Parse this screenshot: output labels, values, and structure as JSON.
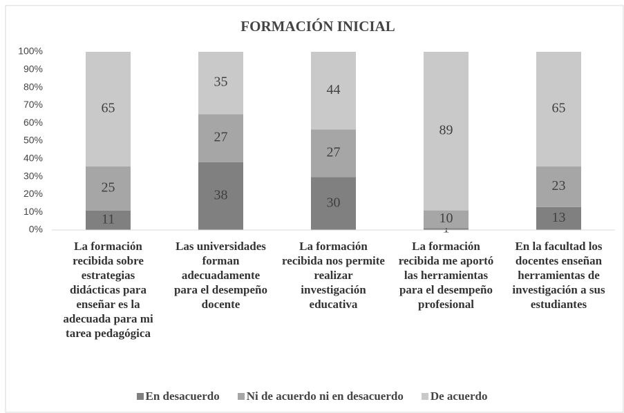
{
  "chart_data": {
    "type": "bar",
    "stacked": "percent",
    "title": "FORMACIÓN INICIAL",
    "categories": [
      "La formación recibida sobre estrategias didácticas para enseñar es la adecuada para mi tarea pedagógica",
      "Las universidades forman adecuadamente para el desempeño docente",
      "La formación recibida nos permite realizar investigación educativa",
      "La formación recibida me aportó las herramientas para el desempeño profesional",
      "En la facultad los docentes enseñan herramientas de investigación a sus estudiantes"
    ],
    "series": [
      {
        "name": "En desacuerdo",
        "color": "#808080",
        "values": [
          11,
          38,
          30,
          1,
          13
        ]
      },
      {
        "name": "Ni de acuerdo ni en desacuerdo",
        "color": "#a6a6a6",
        "values": [
          25,
          27,
          27,
          10,
          23
        ]
      },
      {
        "name": "De acuerdo",
        "color": "#c9c9c9",
        "values": [
          65,
          35,
          44,
          89,
          65
        ]
      }
    ],
    "ylim": [
      0,
      100
    ],
    "yticks": [
      {
        "value": 0,
        "label": "0%"
      },
      {
        "value": 10,
        "label": "10%"
      },
      {
        "value": 20,
        "label": "20%"
      },
      {
        "value": 30,
        "label": "30%"
      },
      {
        "value": 40,
        "label": "40%"
      },
      {
        "value": 50,
        "label": "50%"
      },
      {
        "value": 60,
        "label": "60%"
      },
      {
        "value": 70,
        "label": "70%"
      },
      {
        "value": 80,
        "label": "80%"
      },
      {
        "value": 90,
        "label": "90%"
      },
      {
        "value": 100,
        "label": "100%"
      }
    ],
    "grid": false,
    "legend": "bottom"
  }
}
